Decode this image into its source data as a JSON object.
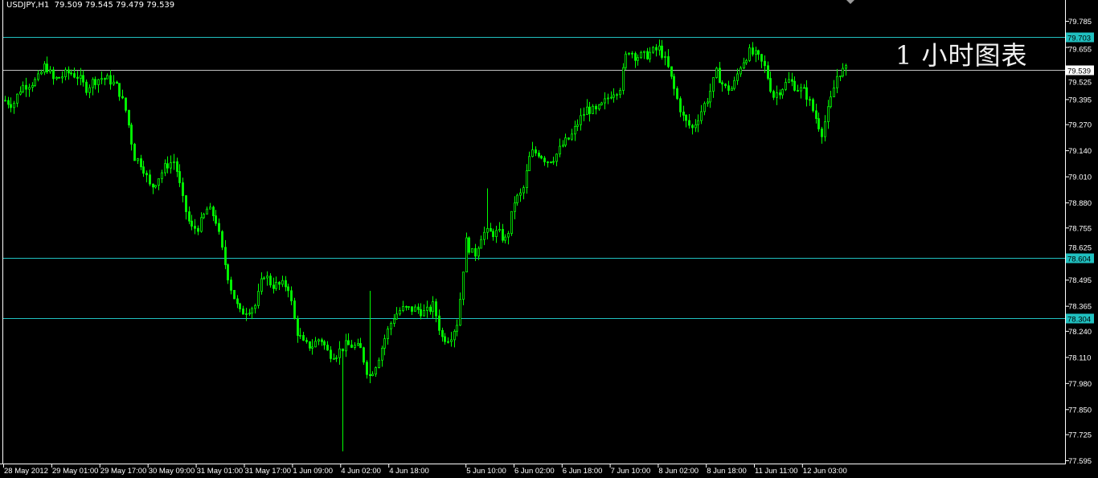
{
  "header": {
    "symbol": "USDJPY,H1",
    "ohlc": "79.509 79.545 79.479 79.539"
  },
  "annotation": "1 小时图表",
  "colors": {
    "background": "#000000",
    "candle": "#00ff00",
    "level_line": "#20c0c0",
    "bid_line": "#c0c0c0",
    "axis": "#ffffff"
  },
  "chart_data": {
    "type": "candlestick",
    "symbol": "USDJPY",
    "timeframe": "H1",
    "ylim": [
      77.595,
      79.785
    ],
    "y_ticks": [
      "79.785",
      "79.655",
      "79.525",
      "79.395",
      "79.270",
      "79.140",
      "79.010",
      "78.880",
      "78.755",
      "78.625",
      "78.495",
      "78.365",
      "78.240",
      "78.110",
      "77.980",
      "77.850",
      "77.725",
      "77.595"
    ],
    "x_ticks": [
      "28 May 2012",
      "29 May 01:00",
      "29 May 17:00",
      "30 May 09:00",
      "31 May 01:00",
      "31 May 17:00",
      "1 Jun 09:00",
      "4 Jun 02:00",
      "4 Jun 18:00",
      "5 Jun 10:00",
      "6 Jun 02:00",
      "6 Jun 18:00",
      "7 Jun 10:00",
      "8 Jun 02:00",
      "8 Jun 18:00",
      "11 Jun 11:00",
      "12 Jun 03:00"
    ],
    "levels": [
      {
        "price": "79.703",
        "kind": "horizontal-line"
      },
      {
        "price": "78.604",
        "kind": "horizontal-line"
      },
      {
        "price": "78.304",
        "kind": "horizontal-line"
      }
    ],
    "bid": "79.539",
    "approx_close_path": [
      79.389,
      79.369,
      79.457,
      79.473,
      79.489,
      79.569,
      79.489,
      79.509,
      79.529,
      79.509,
      79.449,
      79.489,
      79.501,
      79.489,
      79.449,
      79.329,
      79.108,
      79.068,
      78.948,
      79.008,
      79.068,
      79.088,
      78.888,
      78.748,
      78.76,
      78.848,
      78.808,
      78.608,
      78.448,
      78.328,
      78.348,
      78.368,
      78.528,
      78.468,
      78.468,
      78.468,
      78.248,
      78.167,
      78.167,
      78.207,
      78.127,
      78.127,
      78.167,
      78.167,
      78.147,
      78.007,
      78.087,
      78.207,
      78.308,
      78.348,
      78.348,
      78.348,
      78.328,
      78.368,
      78.207,
      78.207,
      78.288,
      78.688,
      78.608,
      78.728,
      78.728,
      78.728,
      78.688,
      78.888,
      78.928,
      79.128,
      79.128,
      79.088,
      79.108,
      79.168,
      79.208,
      79.289,
      79.349,
      79.329,
      79.369,
      79.429,
      79.449,
      79.649,
      79.609,
      79.609,
      79.629,
      79.649,
      79.549,
      79.409,
      79.289,
      79.249,
      79.329,
      79.409,
      79.529,
      79.449,
      79.449,
      79.569,
      79.629,
      79.609,
      79.549,
      79.409,
      79.449,
      79.489,
      79.449,
      79.429,
      79.329,
      79.229,
      79.369,
      79.529,
      79.539
    ]
  }
}
